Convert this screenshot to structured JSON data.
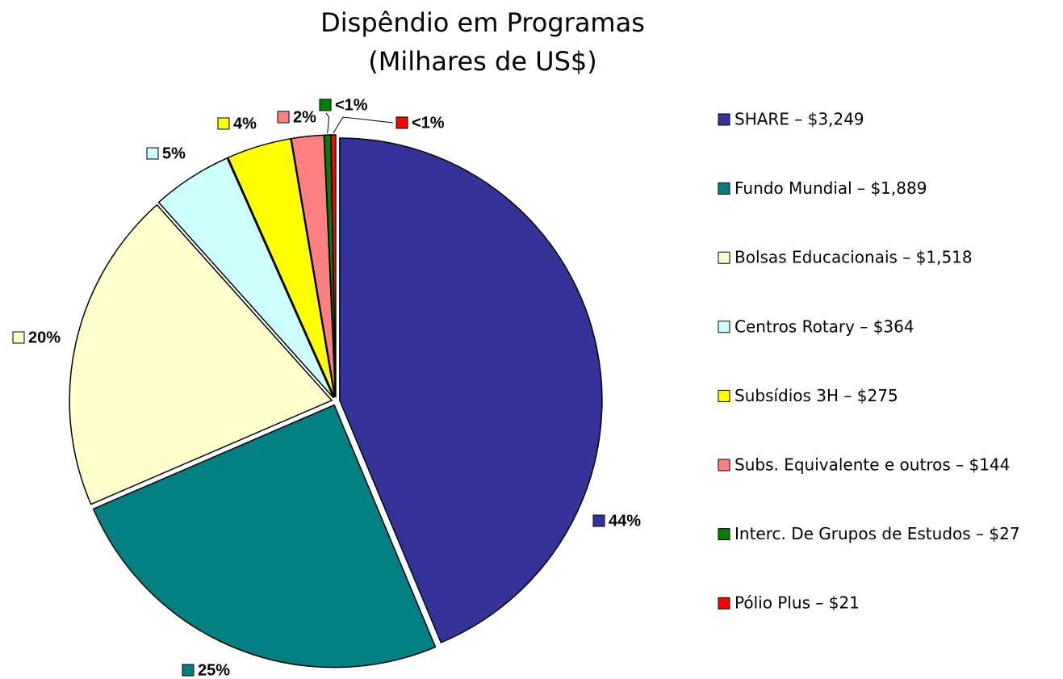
{
  "chart_data": {
    "type": "pie",
    "title": "Dispêndio em Programas",
    "subtitle": "(Milhares de US$)",
    "categories": [
      "SHARE – $3,249",
      "Fundo Mundial – $1,889",
      "Bolsas Educacionais – $1,518",
      "Centros Rotary – $364",
      "Subsídios 3H – $275",
      "Subs. Equivalente e outros – $144",
      "Interc. De Grupos de Estudos – $27",
      "Pólio Plus – $21"
    ],
    "values": [
      44,
      25,
      20,
      5,
      4,
      2,
      0.4,
      0.3
    ],
    "value_labels": [
      "44%",
      "25%",
      "20%",
      "5%",
      "4%",
      "2%",
      "<1%",
      "<1%"
    ],
    "colors": [
      "#333399",
      "#008080",
      "#ffffcc",
      "#ccffff",
      "#ffff00",
      "#ff8080",
      "#008000",
      "#ff0000"
    ],
    "legend": "right"
  }
}
